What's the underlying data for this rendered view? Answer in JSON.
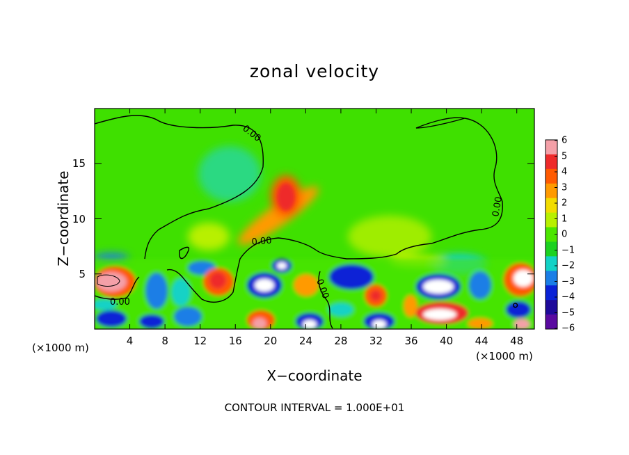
{
  "chart_data": {
    "type": "heatmap",
    "title": "zonal velocity",
    "xlabel": "X−coordinate",
    "ylabel": "Z−coordinate",
    "x_unit": "(×1000 m)",
    "x_ticks": [
      "4",
      "8",
      "12",
      "16",
      "20",
      "24",
      "28",
      "32",
      "36",
      "40",
      "44",
      "48"
    ],
    "x_tick_values": [
      4,
      8,
      12,
      16,
      20,
      24,
      28,
      32,
      36,
      40,
      44,
      48
    ],
    "xlim": [
      0,
      50
    ],
    "y_ticks": [
      "5",
      "10",
      "15"
    ],
    "y_tick_values": [
      5,
      10,
      15
    ],
    "ylim": [
      0,
      20
    ],
    "colorbar": {
      "labels": [
        "6",
        "5",
        "4",
        "3",
        "2",
        "1",
        "0",
        "−1",
        "−2",
        "−3",
        "−4",
        "−5",
        "−6"
      ],
      "values": [
        6,
        5,
        4,
        3,
        2,
        1,
        0,
        -1,
        -2,
        -3,
        -4,
        -5,
        -6
      ],
      "colors": [
        "#f4a0a8",
        "#ee2a2a",
        "#ff5a00",
        "#ff9a00",
        "#f2dc00",
        "#b8f000",
        "#4ce600",
        "#1cd220",
        "#12d2c6",
        "#1a7ee6",
        "#0a22d6",
        "#1e0a9a",
        "#5a0aa0"
      ]
    },
    "contour_labels": [
      "0.00",
      "0.00",
      "0.00",
      "0.00",
      "0.00"
    ],
    "footer": "CONTOUR INTERVAL = 1.000E+01"
  }
}
